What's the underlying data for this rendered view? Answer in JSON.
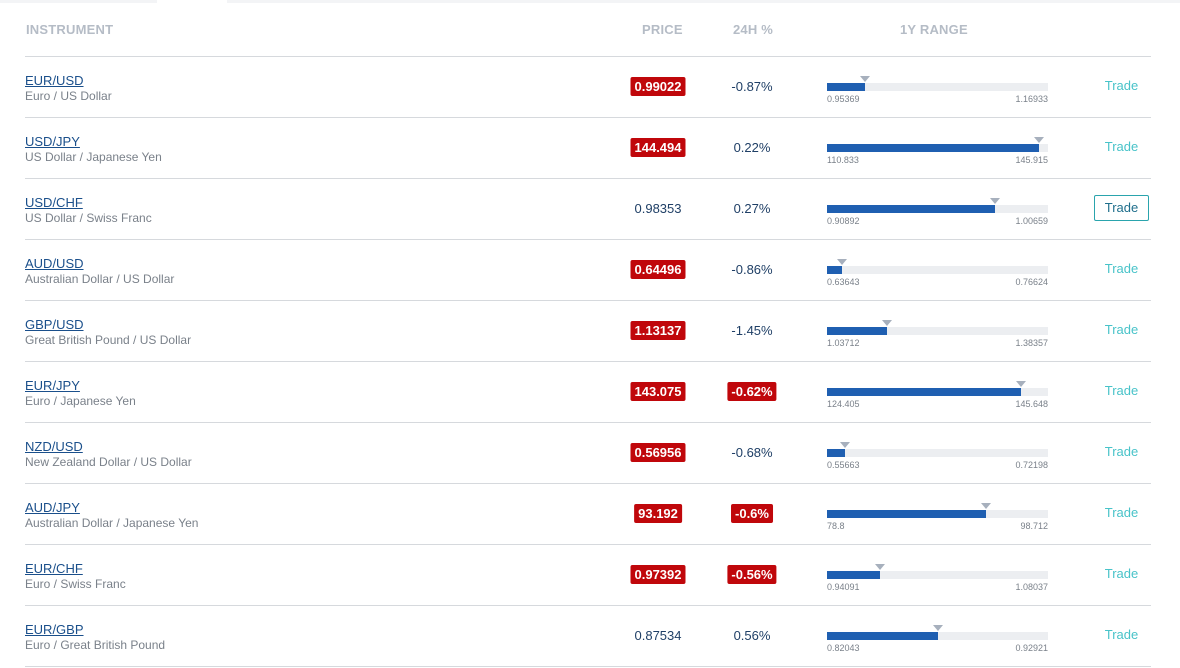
{
  "header": {
    "instrument": "INSTRUMENT",
    "price": "PRICE",
    "change": "24H %",
    "range": "1Y RANGE"
  },
  "rows": [
    {
      "symbol": "EUR/USD",
      "name": "Euro / US Dollar",
      "price": "0.99022",
      "change": "-0.87%",
      "price_flash": true,
      "change_flash": false,
      "low": "0.95369",
      "high": "1.16933",
      "position_pct": 17,
      "trade": "Trade",
      "trade_focused": false
    },
    {
      "symbol": "USD/JPY",
      "name": "US Dollar / Japanese Yen",
      "price": "144.494",
      "change": "0.22%",
      "price_flash": true,
      "change_flash": false,
      "low": "110.833",
      "high": "145.915",
      "position_pct": 96,
      "trade": "Trade",
      "trade_focused": false
    },
    {
      "symbol": "USD/CHF",
      "name": "US Dollar / Swiss Franc",
      "price": "0.98353",
      "change": "0.27%",
      "price_flash": false,
      "change_flash": false,
      "low": "0.90892",
      "high": "1.00659",
      "position_pct": 76,
      "trade": "Trade",
      "trade_focused": true
    },
    {
      "symbol": "AUD/USD",
      "name": "Australian Dollar / US Dollar",
      "price": "0.64496",
      "change": "-0.86%",
      "price_flash": true,
      "change_flash": false,
      "low": "0.63643",
      "high": "0.76624",
      "position_pct": 7,
      "trade": "Trade",
      "trade_focused": false
    },
    {
      "symbol": "GBP/USD",
      "name": "Great British Pound / US Dollar",
      "price": "1.13137",
      "change": "-1.45%",
      "price_flash": true,
      "change_flash": false,
      "low": "1.03712",
      "high": "1.38357",
      "position_pct": 27,
      "trade": "Trade",
      "trade_focused": false
    },
    {
      "symbol": "EUR/JPY",
      "name": "Euro / Japanese Yen",
      "price": "143.075",
      "change": "-0.62%",
      "price_flash": true,
      "change_flash": true,
      "low": "124.405",
      "high": "145.648",
      "position_pct": 88,
      "trade": "Trade",
      "trade_focused": false
    },
    {
      "symbol": "NZD/USD",
      "name": "New Zealand Dollar / US Dollar",
      "price": "0.56956",
      "change": "-0.68%",
      "price_flash": true,
      "change_flash": false,
      "low": "0.55663",
      "high": "0.72198",
      "position_pct": 8,
      "trade": "Trade",
      "trade_focused": false
    },
    {
      "symbol": "AUD/JPY",
      "name": "Australian Dollar / Japanese Yen",
      "price": "93.192",
      "change": "-0.6%",
      "price_flash": true,
      "change_flash": true,
      "low": "78.8",
      "high": "98.712",
      "position_pct": 72,
      "trade": "Trade",
      "trade_focused": false
    },
    {
      "symbol": "EUR/CHF",
      "name": "Euro / Swiss Franc",
      "price": "0.97392",
      "change": "-0.56%",
      "price_flash": true,
      "change_flash": true,
      "low": "0.94091",
      "high": "1.08037",
      "position_pct": 24,
      "trade": "Trade",
      "trade_focused": false
    },
    {
      "symbol": "EUR/GBP",
      "name": "Euro / Great British Pound",
      "price": "0.87534",
      "change": "0.56%",
      "price_flash": false,
      "change_flash": false,
      "low": "0.82043",
      "high": "0.92921",
      "position_pct": 50,
      "trade": "Trade",
      "trade_focused": false
    }
  ],
  "colors": {
    "flash_red": "#c0070b",
    "range_fill": "#1f5fb1",
    "trade_link": "#48c3c9",
    "symbol_link": "#1a4f8b"
  }
}
